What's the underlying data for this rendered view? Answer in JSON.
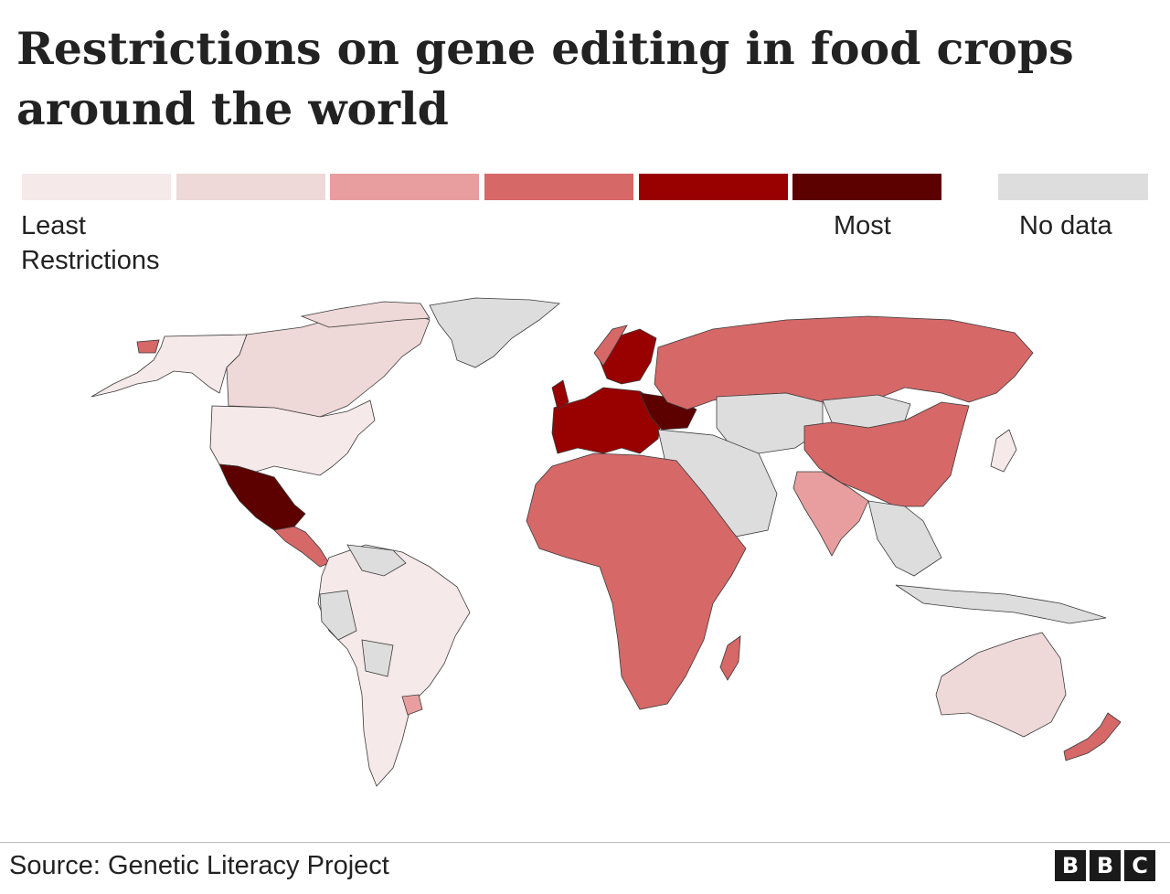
{
  "title": "Restrictions on gene editing in food crops around the world",
  "legend": {
    "least_label": "Least Restrictions",
    "most_label": "Most",
    "nodata_label": "No data",
    "scale_colors": [
      "#f5e9e9",
      "#efd8d8",
      "#e89e9e",
      "#d66868",
      "#990000",
      "#5c0000"
    ],
    "nodata_color": "#dddddd"
  },
  "map": {
    "levels": {
      "canada": "#efd8d8",
      "usa": "#f5e9e9",
      "alaska": "#f5e9e9",
      "greenland": "#dddddd",
      "mexico": "#5c0000",
      "central_america": "#d66868",
      "south_america": "#f5e9e9",
      "south_america_nodata": "#dddddd",
      "uruguay": "#e89e9e",
      "europe_eu": "#990000",
      "europe_east": "#5c0000",
      "norway": "#d66868",
      "russia": "#d66868",
      "china": "#d66868",
      "mongolia": "#dddddd",
      "central_asia": "#dddddd",
      "middle_east": "#dddddd",
      "india": "#e89e9e",
      "southeast_asia": "#dddddd",
      "japan": "#f5e9e9",
      "africa": "#d66868",
      "madagascar": "#d66868",
      "australia": "#efd8d8",
      "new_zealand": "#d66868",
      "indonesia": "#dddddd"
    }
  },
  "source": "Source: Genetic Literacy Project",
  "logo": {
    "letters": [
      "B",
      "B",
      "C"
    ]
  }
}
